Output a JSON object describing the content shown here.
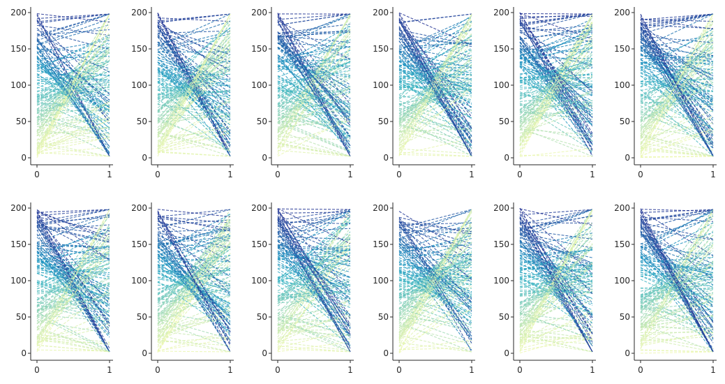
{
  "chart_data": {
    "type": "line",
    "layout": "2 rows x 6 columns of small multiples (parallel-coordinate style)",
    "title": "",
    "xlabel": "",
    "ylabel": "",
    "xlim": [
      0,
      1
    ],
    "ylim": [
      0,
      200
    ],
    "xticks": [
      0,
      1
    ],
    "xtick_labels": [
      "0",
      "1"
    ],
    "yticks": [
      0,
      50,
      100,
      150,
      200
    ],
    "ytick_labels": [
      "0",
      "50",
      "100",
      "150",
      "200"
    ],
    "line_style": "dashed",
    "colormap": "YlGnBu (color encodes starting value at x=0)",
    "colormap_stops": [
      "#edf8b1",
      "#c7e9b4",
      "#7fcdbb",
      "#41b6c4",
      "#1d91c0",
      "#225ea8",
      "#253494"
    ],
    "spine_color": "#262626",
    "panels": [
      {
        "row": 0,
        "col": 0,
        "lines_per_panel": 150,
        "seed": 11
      },
      {
        "row": 0,
        "col": 1,
        "lines_per_panel": 150,
        "seed": 23
      },
      {
        "row": 0,
        "col": 2,
        "lines_per_panel": 150,
        "seed": 37
      },
      {
        "row": 0,
        "col": 3,
        "lines_per_panel": 150,
        "seed": 41
      },
      {
        "row": 0,
        "col": 4,
        "lines_per_panel": 150,
        "seed": 53
      },
      {
        "row": 0,
        "col": 5,
        "lines_per_panel": 150,
        "seed": 67
      },
      {
        "row": 1,
        "col": 0,
        "lines_per_panel": 150,
        "seed": 71
      },
      {
        "row": 1,
        "col": 1,
        "lines_per_panel": 150,
        "seed": 83
      },
      {
        "row": 1,
        "col": 2,
        "lines_per_panel": 150,
        "seed": 97
      },
      {
        "row": 1,
        "col": 3,
        "lines_per_panel": 150,
        "seed": 101
      },
      {
        "row": 1,
        "col": 4,
        "lines_per_panel": 150,
        "seed": 113
      },
      {
        "row": 1,
        "col": 5,
        "lines_per_panel": 150,
        "seed": 127
      }
    ]
  }
}
